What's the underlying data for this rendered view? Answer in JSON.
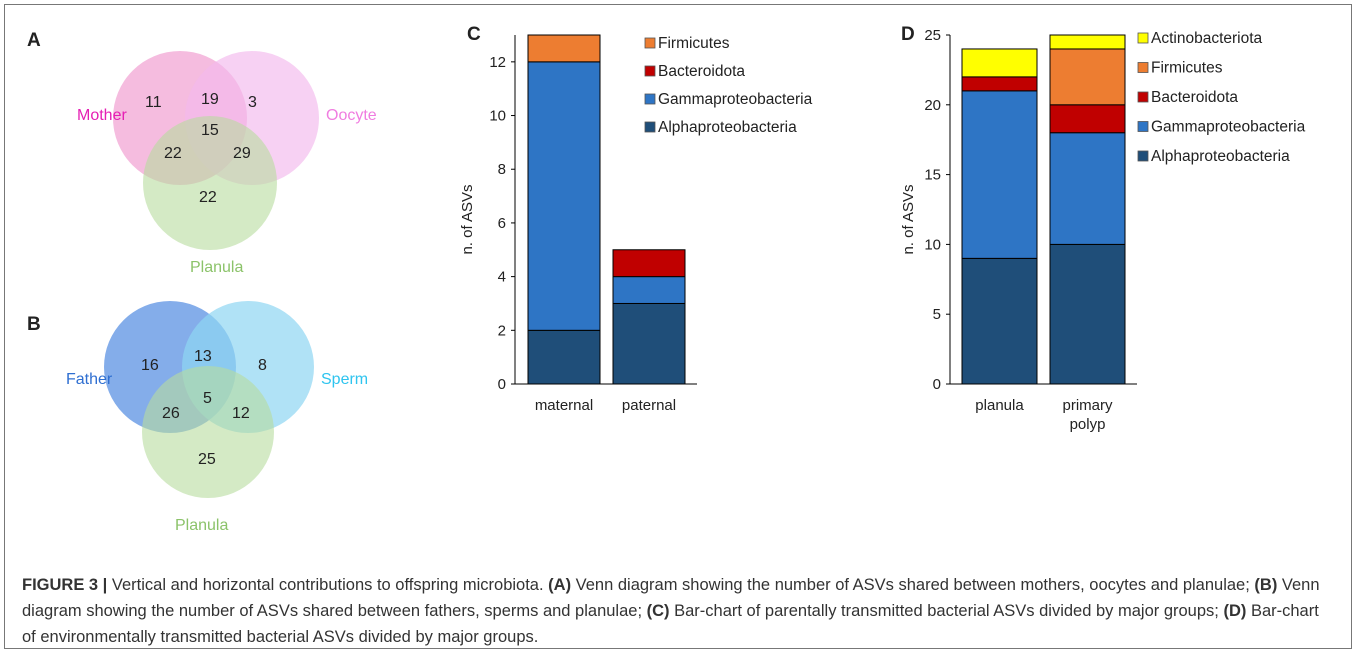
{
  "colors": {
    "pink_circle": "#f2a6d4",
    "violet_circle": "#f3b9ec",
    "green_circle": "#b7dc9e",
    "blue_circle": "#5b91e3",
    "cyan_circle": "#8fd6f2",
    "mother_label": "#e51fb4",
    "oocyte_label": "#f07de0",
    "planula_label": "#8cc36a",
    "father_label": "#2f6fd1",
    "sperm_label": "#2ec4ef",
    "alphaproteobacteria": "#1f4e79",
    "gammaproteobacteria": "#2e75c5",
    "bacteroidota": "#c00000",
    "firmicutes": "#ed7d31",
    "actinobacteriota": "#ffff00"
  },
  "panels": {
    "a": {
      "label": "A"
    },
    "b": {
      "label": "B"
    },
    "c": {
      "label": "C"
    },
    "d": {
      "label": "D"
    }
  },
  "venn_a": {
    "sets": [
      "Mother",
      "Oocyte",
      "Planula"
    ],
    "regions": {
      "mother_only": "11",
      "oocyte_only": "3",
      "planula_only": "22",
      "mother_oocyte": "19",
      "mother_planula": "22",
      "oocyte_planula": "29",
      "all_three": "15"
    }
  },
  "venn_b": {
    "sets": [
      "Father",
      "Sperm",
      "Planula"
    ],
    "regions": {
      "father_only": "16",
      "sperm_only": "8",
      "planula_only": "25",
      "father_sperm": "13",
      "father_planula": "26",
      "sperm_planula": "12",
      "all_three": "5"
    }
  },
  "chart_data": [
    {
      "type": "bar",
      "stacked": true,
      "panel": "C",
      "categories": [
        "maternal",
        "paternal"
      ],
      "ylabel": "n. of ASVs",
      "ylim": [
        0,
        13
      ],
      "yticks": [
        0,
        2,
        4,
        6,
        8,
        10,
        12
      ],
      "legend_position": "top-right",
      "series": [
        {
          "name": "Alphaproteobacteria",
          "values": [
            2,
            3
          ]
        },
        {
          "name": "Gammaproteobacteria",
          "values": [
            10,
            1
          ]
        },
        {
          "name": "Bacteroidota",
          "values": [
            0,
            1
          ]
        },
        {
          "name": "Firmicutes",
          "values": [
            1,
            0
          ]
        }
      ],
      "legend_order": [
        "Firmicutes",
        "Bacteroidota",
        "Gammaproteobacteria",
        "Alphaproteobacteria"
      ]
    },
    {
      "type": "bar",
      "stacked": true,
      "panel": "D",
      "categories": [
        "planula",
        "primary polyp"
      ],
      "ylabel": "n. of ASVs",
      "ylim": [
        0,
        25
      ],
      "yticks": [
        0,
        5,
        10,
        15,
        20,
        25
      ],
      "legend_position": "top-right",
      "series": [
        {
          "name": "Alphaproteobacteria",
          "values": [
            9,
            10
          ]
        },
        {
          "name": "Gammaproteobacteria",
          "values": [
            12,
            8
          ]
        },
        {
          "name": "Bacteroidota",
          "values": [
            1,
            2
          ]
        },
        {
          "name": "Firmicutes",
          "values": [
            0,
            4
          ]
        },
        {
          "name": "Actinobacteriota",
          "values": [
            2,
            1
          ]
        }
      ],
      "legend_order": [
        "Actinobacteriota",
        "Firmicutes",
        "Bacteroidota",
        "Gammaproteobacteria",
        "Alphaproteobacteria"
      ]
    }
  ],
  "caption": {
    "figure_label": "FIGURE 3 |",
    "intro": " Vertical and horizontal contributions to offspring microbiota. ",
    "a_tag": "(A)",
    "a_text": " Venn diagram showing the number of ASVs shared between mothers, oocytes and planulae; ",
    "b_tag": "(B)",
    "b_text": " Venn diagram showing the number of ASVs shared between fathers, sperms and planulae; ",
    "c_tag": "(C)",
    "c_text": " Bar-chart of parentally transmitted bacterial ASVs divided by major groups; ",
    "d_tag": "(D)",
    "d_text": " Bar-chart of environmentally transmitted bacterial ASVs divided by major groups."
  }
}
